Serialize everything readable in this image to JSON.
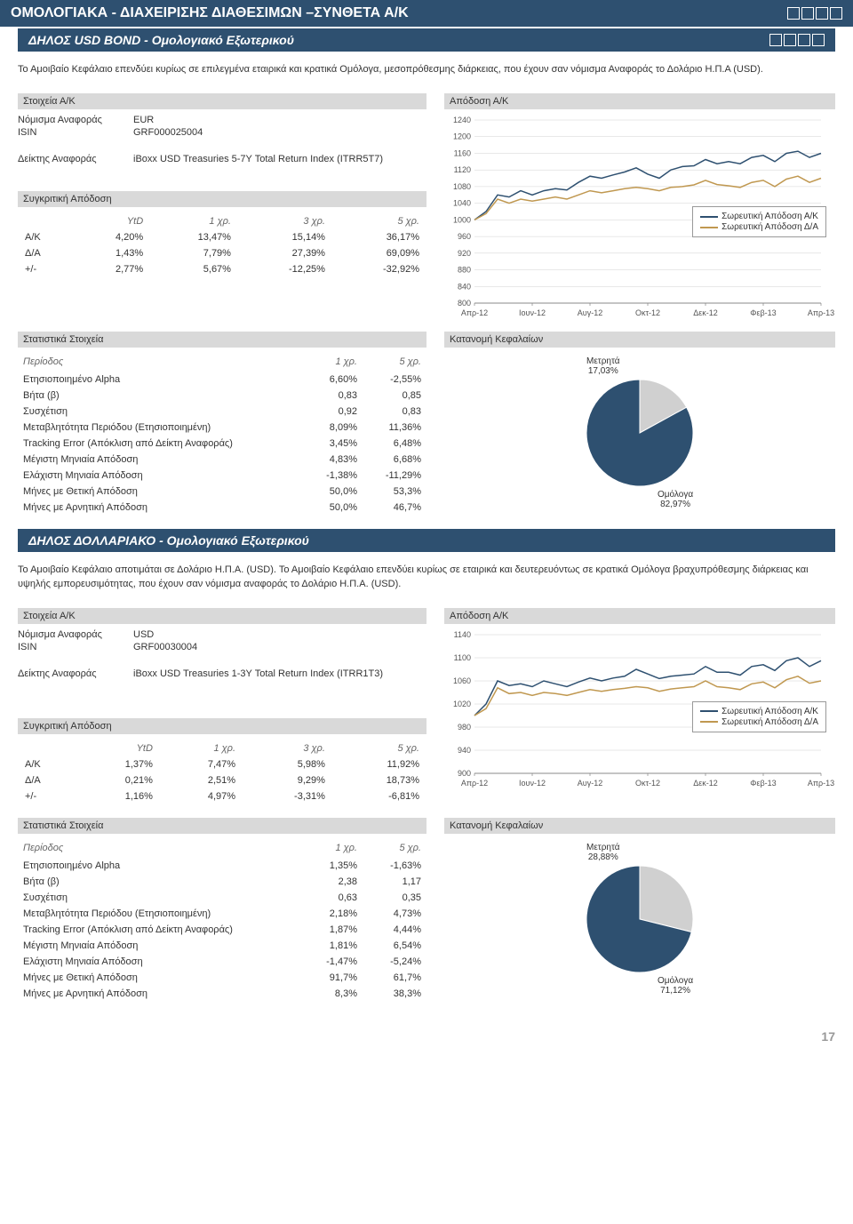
{
  "page_number": "17",
  "main_title": "ΟΜΟΛΟΓΙΑΚΑ - ΔΙΑΧΕΙΡΙΣΗΣ ΔΙΑΘΕΣΙΜΩΝ –ΣΥΝΘΕΤΑ Α/Κ",
  "fund1": {
    "title": "ΔΗΛΟΣ USD BOND - Ομολογιακό Εξωτερικού",
    "description": "Το Αμοιβαίο Κεφάλαιο επενδύει κυρίως σε επιλεγμένα εταιρικά και κρατικά Ομόλογα, μεσοπρόθεσμης διάρκειας, που έχουν σαν νόμισμα Αναφοράς το Δολάριο Η.Π.Α (USD).",
    "details_title": "Στοιχεία Α/Κ",
    "currency_label": "Νόμισμα Αναφοράς",
    "currency": "EUR",
    "isin_label": "ISIN",
    "isin": "GRF000025004",
    "benchmark_label": "Δείκτης Αναφοράς",
    "benchmark": "iBoxx USD Treasuries 5-7Υ Total Return Index (ITRR5T7)",
    "comp_title": "Συγκριτική Απόδοση",
    "cols": [
      "YtD",
      "1 χρ.",
      "3 χρ.",
      "5 χρ."
    ],
    "rows": [
      {
        "label": "Α/Κ",
        "vals": [
          "4,20%",
          "13,47%",
          "15,14%",
          "36,17%"
        ]
      },
      {
        "label": "Δ/Α",
        "vals": [
          "1,43%",
          "7,79%",
          "27,39%",
          "69,09%"
        ]
      },
      {
        "label": "+/-",
        "vals": [
          "2,77%",
          "5,67%",
          "-12,25%",
          "-32,92%"
        ]
      }
    ],
    "perf_title": "Απόδοση Α/Κ",
    "chart": {
      "ylim": [
        800,
        1240
      ],
      "ytick_step": 40,
      "xlabels": [
        "Απρ-12",
        "Ιουν-12",
        "Αυγ-12",
        "Οκτ-12",
        "Δεκ-12",
        "Φεβ-13",
        "Απρ-13"
      ],
      "series": [
        {
          "name": "Σωρευτική Απόδοση Α/Κ",
          "color": "#2e5070",
          "data": [
            1000,
            1020,
            1060,
            1055,
            1070,
            1060,
            1070,
            1075,
            1072,
            1090,
            1105,
            1100,
            1108,
            1115,
            1125,
            1110,
            1100,
            1120,
            1128,
            1130,
            1145,
            1135,
            1140,
            1135,
            1150,
            1155,
            1140,
            1160,
            1165,
            1150,
            1160
          ]
        },
        {
          "name": "Σωρευτική Απόδοση Δ/Α",
          "color": "#c09850",
          "data": [
            1000,
            1015,
            1050,
            1040,
            1050,
            1045,
            1050,
            1055,
            1050,
            1060,
            1070,
            1065,
            1070,
            1075,
            1078,
            1075,
            1070,
            1078,
            1080,
            1084,
            1095,
            1085,
            1082,
            1078,
            1090,
            1095,
            1080,
            1098,
            1105,
            1090,
            1100
          ]
        }
      ],
      "bg": "#ffffff",
      "grid": "#d0d0d0"
    },
    "stats_title": "Στατιστικά Στοιχεία",
    "period_label": "Περίοδος",
    "stat_cols": [
      "1 χρ.",
      "5 χρ."
    ],
    "stats": [
      {
        "label": "Ετησιοποιημένο Alpha",
        "vals": [
          "6,60%",
          "-2,55%"
        ]
      },
      {
        "label": "Βήτα (β)",
        "vals": [
          "0,83",
          "0,85"
        ]
      },
      {
        "label": "Συσχέτιση",
        "vals": [
          "0,92",
          "0,83"
        ]
      },
      {
        "label": "Μεταβλητότητα Περιόδου (Ετησιοποιημένη)",
        "vals": [
          "8,09%",
          "11,36%"
        ]
      },
      {
        "label": "Tracking Error (Απόκλιση από Δείκτη Αναφοράς)",
        "vals": [
          "3,45%",
          "6,48%"
        ]
      },
      {
        "label": "Μέγιστη Μηνιαία Απόδοση",
        "vals": [
          "4,83%",
          "6,68%"
        ]
      },
      {
        "label": "Ελάχιστη Μηνιαία Απόδοση",
        "vals": [
          "-1,38%",
          "-11,29%"
        ]
      },
      {
        "label": "Μήνες με Θετική Απόδοση",
        "vals": [
          "50,0%",
          "53,3%"
        ]
      },
      {
        "label": "Μήνες με Αρνητική Απόδοση",
        "vals": [
          "50,0%",
          "46,7%"
        ]
      }
    ],
    "alloc_title": "Κατανομή Κεφαλαίων",
    "pie": {
      "slices": [
        {
          "label": "Μετρητά",
          "value": "17,03%",
          "pct": 17.03,
          "color": "#d0d0d0"
        },
        {
          "label": "Ομόλογα",
          "value": "82,97%",
          "pct": 82.97,
          "color": "#2e5070"
        }
      ]
    }
  },
  "fund2": {
    "title": "ΔΗΛΟΣ ΔΟΛΛΑΡΙΑΚΟ - Ομολογιακό Εξωτερικού",
    "description": "Το Αμοιβαίο Κεφάλαιο αποτιμάται σε Δολάριο Η.Π.Α. (USD). Το Αμοιβαίο Κεφάλαιο επενδύει κυρίως σε εταιρικά και δευτερευόντως σε κρατικά Ομόλογα βραχυπρόθεσμης διάρκειας και υψηλής εμπορευσιμότητας, που έχουν σαν νόμισμα αναφοράς το Δολάριο Η.Π.Α. (USD).",
    "details_title": "Στοιχεία Α/Κ",
    "currency": "USD",
    "isin": "GRF00030004",
    "benchmark": "iBoxx USD Treasuries 1-3Υ Total Return Index (ITRR1T3)",
    "comp_title": "Συγκριτική Απόδοση",
    "cols": [
      "YtD",
      "1 χρ.",
      "3 χρ.",
      "5 χρ."
    ],
    "rows": [
      {
        "label": "Α/Κ",
        "vals": [
          "1,37%",
          "7,47%",
          "5,98%",
          "11,92%"
        ]
      },
      {
        "label": "Δ/Α",
        "vals": [
          "0,21%",
          "2,51%",
          "9,29%",
          "18,73%"
        ]
      },
      {
        "label": "+/-",
        "vals": [
          "1,16%",
          "4,97%",
          "-3,31%",
          "-6,81%"
        ]
      }
    ],
    "perf_title": "Απόδοση Α/Κ",
    "chart": {
      "ylim": [
        900,
        1140
      ],
      "ytick_step": 40,
      "xlabels": [
        "Απρ-12",
        "Ιουν-12",
        "Αυγ-12",
        "Οκτ-12",
        "Δεκ-12",
        "Φεβ-13",
        "Απρ-13"
      ],
      "series": [
        {
          "name": "Σωρευτική Απόδοση Α/Κ",
          "color": "#2e5070",
          "data": [
            1000,
            1020,
            1060,
            1052,
            1055,
            1050,
            1060,
            1055,
            1050,
            1058,
            1065,
            1060,
            1065,
            1068,
            1080,
            1072,
            1064,
            1068,
            1070,
            1072,
            1085,
            1075,
            1075,
            1070,
            1085,
            1088,
            1078,
            1095,
            1100,
            1085,
            1095
          ]
        },
        {
          "name": "Σωρευτική Απόδοση Δ/Α",
          "color": "#c09850",
          "data": [
            1000,
            1012,
            1048,
            1038,
            1040,
            1035,
            1040,
            1038,
            1035,
            1040,
            1045,
            1042,
            1045,
            1047,
            1050,
            1048,
            1042,
            1046,
            1048,
            1050,
            1060,
            1050,
            1048,
            1045,
            1055,
            1058,
            1048,
            1062,
            1068,
            1056,
            1060
          ]
        }
      ],
      "bg": "#ffffff",
      "grid": "#d0d0d0"
    },
    "stats_title": "Στατιστικά Στοιχεία",
    "stat_cols": [
      "1 χρ.",
      "5 χρ."
    ],
    "stats": [
      {
        "label": "Ετησιοποιημένο Alpha",
        "vals": [
          "1,35%",
          "-1,63%"
        ]
      },
      {
        "label": "Βήτα (β)",
        "vals": [
          "2,38",
          "1,17"
        ]
      },
      {
        "label": "Συσχέτιση",
        "vals": [
          "0,63",
          "0,35"
        ]
      },
      {
        "label": "Μεταβλητότητα Περιόδου (Ετησιοποιημένη)",
        "vals": [
          "2,18%",
          "4,73%"
        ]
      },
      {
        "label": "Tracking Error (Απόκλιση από Δείκτη Αναφοράς)",
        "vals": [
          "1,87%",
          "4,44%"
        ]
      },
      {
        "label": "Μέγιστη Μηνιαία Απόδοση",
        "vals": [
          "1,81%",
          "6,54%"
        ]
      },
      {
        "label": "Ελάχιστη Μηνιαία Απόδοση",
        "vals": [
          "-1,47%",
          "-5,24%"
        ]
      },
      {
        "label": "Μήνες με Θετική Απόδοση",
        "vals": [
          "91,7%",
          "61,7%"
        ]
      },
      {
        "label": "Μήνες με Αρνητική Απόδοση",
        "vals": [
          "8,3%",
          "38,3%"
        ]
      }
    ],
    "alloc_title": "Κατανομή Κεφαλαίων",
    "pie": {
      "slices": [
        {
          "label": "Μετρητά",
          "value": "28,88%",
          "pct": 28.88,
          "color": "#d0d0d0"
        },
        {
          "label": "Ομόλογα",
          "value": "71,12%",
          "pct": 71.12,
          "color": "#2e5070"
        }
      ]
    }
  }
}
